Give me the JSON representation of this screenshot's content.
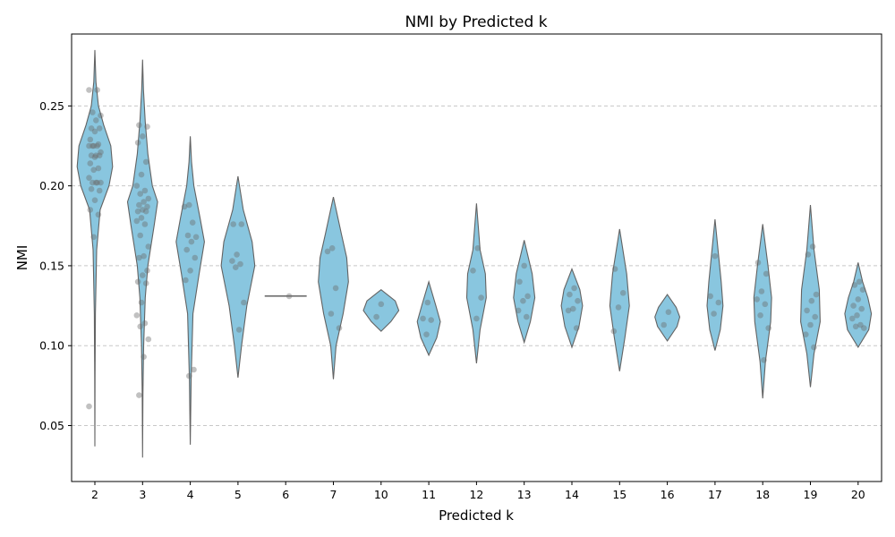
{
  "chart_data": {
    "type": "violin",
    "title": "NMI by Predicted k",
    "xlabel": "Predicted k",
    "ylabel": "NMI",
    "ylim": [
      0.015,
      0.295
    ],
    "yticks": [
      0.05,
      0.1,
      0.15,
      0.2,
      0.25
    ],
    "ytick_labels": [
      "0.05",
      "0.10",
      "0.15",
      "0.20",
      "0.25"
    ],
    "grid": "y-dashed",
    "violin_color": "#89c6df",
    "categories": [
      "2",
      "3",
      "4",
      "5",
      "6",
      "7",
      "10",
      "11",
      "12",
      "13",
      "14",
      "15",
      "16",
      "17",
      "18",
      "19",
      "20"
    ],
    "violins": [
      {
        "k": "2",
        "ymin": 0.037,
        "ymax": 0.285,
        "profile": [
          [
            0.037,
            0.0
          ],
          [
            0.08,
            0.01
          ],
          [
            0.12,
            0.03
          ],
          [
            0.16,
            0.1
          ],
          [
            0.185,
            0.3
          ],
          [
            0.2,
            0.8
          ],
          [
            0.212,
            1.0
          ],
          [
            0.225,
            0.9
          ],
          [
            0.238,
            0.5
          ],
          [
            0.25,
            0.2
          ],
          [
            0.265,
            0.06
          ],
          [
            0.285,
            0.0
          ]
        ],
        "points": [
          0.062,
          0.168,
          0.182,
          0.185,
          0.191,
          0.197,
          0.198,
          0.202,
          0.202,
          0.202,
          0.202,
          0.205,
          0.21,
          0.211,
          0.214,
          0.218,
          0.219,
          0.219,
          0.219,
          0.221,
          0.225,
          0.225,
          0.225,
          0.225,
          0.226,
          0.229,
          0.234,
          0.236,
          0.236,
          0.241,
          0.244,
          0.246,
          0.26,
          0.26
        ]
      },
      {
        "k": "3",
        "ymin": 0.03,
        "ymax": 0.279,
        "profile": [
          [
            0.03,
            0.0
          ],
          [
            0.07,
            0.02
          ],
          [
            0.1,
            0.06
          ],
          [
            0.13,
            0.15
          ],
          [
            0.15,
            0.3
          ],
          [
            0.175,
            0.65
          ],
          [
            0.19,
            0.85
          ],
          [
            0.2,
            0.55
          ],
          [
            0.22,
            0.3
          ],
          [
            0.24,
            0.15
          ],
          [
            0.26,
            0.05
          ],
          [
            0.279,
            0.0
          ]
        ],
        "points": [
          0.069,
          0.093,
          0.104,
          0.112,
          0.114,
          0.119,
          0.127,
          0.139,
          0.14,
          0.144,
          0.147,
          0.155,
          0.156,
          0.162,
          0.169,
          0.176,
          0.178,
          0.18,
          0.184,
          0.184,
          0.185,
          0.187,
          0.188,
          0.19,
          0.192,
          0.195,
          0.197,
          0.2,
          0.207,
          0.215,
          0.227,
          0.231,
          0.237,
          0.238
        ]
      },
      {
        "k": "4",
        "ymin": 0.038,
        "ymax": 0.231,
        "profile": [
          [
            0.038,
            0.0
          ],
          [
            0.08,
            0.05
          ],
          [
            0.12,
            0.15
          ],
          [
            0.145,
            0.5
          ],
          [
            0.165,
            0.8
          ],
          [
            0.18,
            0.55
          ],
          [
            0.2,
            0.2
          ],
          [
            0.215,
            0.07
          ],
          [
            0.231,
            0.0
          ]
        ],
        "points": [
          0.081,
          0.085,
          0.141,
          0.147,
          0.155,
          0.16,
          0.165,
          0.168,
          0.169,
          0.177,
          0.187,
          0.188
        ]
      },
      {
        "k": "5",
        "ymin": 0.08,
        "ymax": 0.206,
        "profile": [
          [
            0.08,
            0.0
          ],
          [
            0.1,
            0.2
          ],
          [
            0.125,
            0.5
          ],
          [
            0.15,
            0.95
          ],
          [
            0.165,
            0.8
          ],
          [
            0.185,
            0.3
          ],
          [
            0.206,
            0.0
          ]
        ],
        "points": [
          0.11,
          0.127,
          0.149,
          0.151,
          0.153,
          0.157,
          0.176,
          0.176
        ]
      },
      {
        "k": "6",
        "ymin": 0.131,
        "ymax": 0.131,
        "profile": [],
        "flat_halfwidth": 0.55,
        "points": [
          0.131
        ]
      },
      {
        "k": "7",
        "ymin": 0.079,
        "ymax": 0.193,
        "profile": [
          [
            0.079,
            0.0
          ],
          [
            0.1,
            0.15
          ],
          [
            0.12,
            0.55
          ],
          [
            0.14,
            0.85
          ],
          [
            0.155,
            0.75
          ],
          [
            0.17,
            0.45
          ],
          [
            0.193,
            0.0
          ]
        ],
        "points": [
          0.111,
          0.12,
          0.136,
          0.159,
          0.161
        ]
      },
      {
        "k": "10",
        "ymin": 0.109,
        "ymax": 0.135,
        "profile": [
          [
            0.109,
            0.0
          ],
          [
            0.115,
            0.55
          ],
          [
            0.122,
            1.0
          ],
          [
            0.128,
            0.8
          ],
          [
            0.135,
            0.0
          ]
        ],
        "points": [
          0.118,
          0.126
        ]
      },
      {
        "k": "11",
        "ymin": 0.094,
        "ymax": 0.14,
        "profile": [
          [
            0.094,
            0.0
          ],
          [
            0.105,
            0.45
          ],
          [
            0.115,
            0.65
          ],
          [
            0.125,
            0.4
          ],
          [
            0.14,
            0.0
          ]
        ],
        "points": [
          0.107,
          0.116,
          0.117,
          0.127
        ]
      },
      {
        "k": "12",
        "ymin": 0.089,
        "ymax": 0.189,
        "profile": [
          [
            0.089,
            0.0
          ],
          [
            0.11,
            0.2
          ],
          [
            0.13,
            0.55
          ],
          [
            0.145,
            0.5
          ],
          [
            0.16,
            0.2
          ],
          [
            0.189,
            0.0
          ]
        ],
        "points": [
          0.117,
          0.13,
          0.147,
          0.161
        ]
      },
      {
        "k": "13",
        "ymin": 0.102,
        "ymax": 0.166,
        "profile": [
          [
            0.102,
            0.0
          ],
          [
            0.115,
            0.35
          ],
          [
            0.13,
            0.6
          ],
          [
            0.145,
            0.45
          ],
          [
            0.166,
            0.0
          ]
        ],
        "points": [
          0.118,
          0.122,
          0.128,
          0.131,
          0.14,
          0.15
        ]
      },
      {
        "k": "14",
        "ymin": 0.099,
        "ymax": 0.148,
        "profile": [
          [
            0.099,
            0.0
          ],
          [
            0.112,
            0.4
          ],
          [
            0.125,
            0.6
          ],
          [
            0.135,
            0.45
          ],
          [
            0.148,
            0.0
          ]
        ],
        "points": [
          0.111,
          0.122,
          0.123,
          0.128,
          0.132,
          0.136
        ]
      },
      {
        "k": "15",
        "ymin": 0.084,
        "ymax": 0.173,
        "profile": [
          [
            0.084,
            0.0
          ],
          [
            0.105,
            0.3
          ],
          [
            0.125,
            0.55
          ],
          [
            0.145,
            0.4
          ],
          [
            0.173,
            0.0
          ]
        ],
        "points": [
          0.109,
          0.124,
          0.133,
          0.148
        ]
      },
      {
        "k": "16",
        "ymin": 0.103,
        "ymax": 0.132,
        "profile": [
          [
            0.103,
            0.0
          ],
          [
            0.112,
            0.55
          ],
          [
            0.118,
            0.7
          ],
          [
            0.124,
            0.5
          ],
          [
            0.132,
            0.0
          ]
        ],
        "points": [
          0.113,
          0.121
        ]
      },
      {
        "k": "17",
        "ymin": 0.097,
        "ymax": 0.179,
        "profile": [
          [
            0.097,
            0.0
          ],
          [
            0.11,
            0.3
          ],
          [
            0.125,
            0.45
          ],
          [
            0.14,
            0.35
          ],
          [
            0.179,
            0.0
          ]
        ],
        "points": [
          0.12,
          0.127,
          0.131,
          0.156
        ]
      },
      {
        "k": "18",
        "ymin": 0.067,
        "ymax": 0.176,
        "profile": [
          [
            0.067,
            0.0
          ],
          [
            0.09,
            0.15
          ],
          [
            0.115,
            0.45
          ],
          [
            0.13,
            0.5
          ],
          [
            0.15,
            0.3
          ],
          [
            0.176,
            0.0
          ]
        ],
        "points": [
          0.091,
          0.111,
          0.119,
          0.126,
          0.129,
          0.134,
          0.145,
          0.152
        ]
      },
      {
        "k": "19",
        "ymin": 0.074,
        "ymax": 0.188,
        "profile": [
          [
            0.074,
            0.0
          ],
          [
            0.095,
            0.2
          ],
          [
            0.115,
            0.55
          ],
          [
            0.135,
            0.5
          ],
          [
            0.16,
            0.2
          ],
          [
            0.188,
            0.0
          ]
        ],
        "points": [
          0.099,
          0.107,
          0.113,
          0.118,
          0.122,
          0.128,
          0.132,
          0.157,
          0.162
        ]
      },
      {
        "k": "20",
        "ymin": 0.099,
        "ymax": 0.152,
        "profile": [
          [
            0.099,
            0.0
          ],
          [
            0.11,
            0.6
          ],
          [
            0.12,
            0.75
          ],
          [
            0.13,
            0.55
          ],
          [
            0.14,
            0.25
          ],
          [
            0.152,
            0.0
          ]
        ],
        "points": [
          0.111,
          0.112,
          0.113,
          0.117,
          0.119,
          0.123,
          0.125,
          0.129,
          0.135,
          0.138,
          0.14
        ]
      }
    ]
  }
}
